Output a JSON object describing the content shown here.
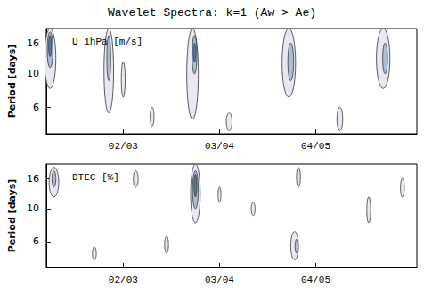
{
  "suptitle": "Wavelet Spectra: k=1 (Aw > Ae)",
  "chart_data": [
    {
      "type": "contour",
      "title": "U_1hPa [m/s]",
      "ylabel": "Period [days]",
      "log": "y",
      "xlim": [
        0.2,
        4.05
      ],
      "xticks": [
        {
          "value": 1,
          "label": "02/03"
        },
        {
          "value": 2,
          "label": "03/04"
        },
        {
          "value": 3,
          "label": "04/05"
        }
      ],
      "ylim": [
        4,
        20
      ],
      "yticks": [
        6,
        10,
        16
      ],
      "levels": [
        1,
        2,
        3
      ],
      "colors": [
        "#ece6f2",
        "#a8bfd8",
        "#4f7fa8"
      ],
      "contours": [
        {
          "x": 0.24,
          "period_min": 8,
          "period_max": 20,
          "half_width": 0.06,
          "level": 1
        },
        {
          "x": 0.24,
          "period_min": 11,
          "period_max": 19,
          "half_width": 0.03,
          "level": 2
        },
        {
          "x": 0.24,
          "period_min": 13,
          "period_max": 18,
          "half_width": 0.015,
          "level": 3
        },
        {
          "x": 0.85,
          "period_min": 5.5,
          "period_max": 20,
          "half_width": 0.05,
          "level": 1
        },
        {
          "x": 0.85,
          "period_min": 9,
          "period_max": 18,
          "half_width": 0.02,
          "level": 2
        },
        {
          "x": 1.0,
          "period_min": 7,
          "period_max": 12,
          "half_width": 0.02,
          "level": 1
        },
        {
          "x": 1.72,
          "period_min": 5,
          "period_max": 20,
          "half_width": 0.06,
          "level": 1
        },
        {
          "x": 1.74,
          "period_min": 10,
          "period_max": 18,
          "half_width": 0.025,
          "level": 2
        },
        {
          "x": 1.74,
          "period_min": 12,
          "period_max": 16,
          "half_width": 0.01,
          "level": 3
        },
        {
          "x": 2.72,
          "period_min": 7,
          "period_max": 20,
          "half_width": 0.07,
          "level": 1
        },
        {
          "x": 2.74,
          "period_min": 9,
          "period_max": 16,
          "half_width": 0.03,
          "level": 2
        },
        {
          "x": 3.7,
          "period_min": 8,
          "period_max": 20,
          "half_width": 0.07,
          "level": 1
        },
        {
          "x": 3.72,
          "period_min": 10,
          "period_max": 16,
          "half_width": 0.025,
          "level": 2
        },
        {
          "x": 3.25,
          "period_min": 4.2,
          "period_max": 6,
          "half_width": 0.03,
          "level": 1
        },
        {
          "x": 2.1,
          "period_min": 4.2,
          "period_max": 5.5,
          "half_width": 0.03,
          "level": 1
        },
        {
          "x": 1.3,
          "period_min": 4.5,
          "period_max": 6,
          "half_width": 0.02,
          "level": 1
        }
      ]
    },
    {
      "type": "contour",
      "title": "DTEC [%]",
      "ylabel": "Period [days]",
      "log": "y",
      "xlim": [
        0.2,
        4.05
      ],
      "xticks": [
        {
          "value": 1,
          "label": "02/03"
        },
        {
          "value": 2,
          "label": "03/04"
        },
        {
          "value": 3,
          "label": "04/05"
        }
      ],
      "ylim": [
        4,
        20
      ],
      "yticks": [
        6,
        10,
        16
      ],
      "levels": [
        1,
        2,
        3
      ],
      "colors": [
        "#ece6f2",
        "#a8bfd8",
        "#4f7fa8"
      ],
      "contours": [
        {
          "x": 0.28,
          "period_min": 12,
          "period_max": 19,
          "half_width": 0.05,
          "level": 1
        },
        {
          "x": 0.28,
          "period_min": 14,
          "period_max": 18,
          "half_width": 0.02,
          "level": 2
        },
        {
          "x": 1.13,
          "period_min": 14,
          "period_max": 18,
          "half_width": 0.025,
          "level": 1
        },
        {
          "x": 1.75,
          "period_min": 8,
          "period_max": 20,
          "half_width": 0.05,
          "level": 1
        },
        {
          "x": 1.75,
          "period_min": 10,
          "period_max": 18,
          "half_width": 0.03,
          "level": 2
        },
        {
          "x": 1.75,
          "period_min": 12,
          "period_max": 17,
          "half_width": 0.015,
          "level": 3
        },
        {
          "x": 2.35,
          "period_min": 9,
          "period_max": 11,
          "half_width": 0.02,
          "level": 1
        },
        {
          "x": 2.78,
          "period_min": 4.5,
          "period_max": 7,
          "half_width": 0.04,
          "level": 1
        },
        {
          "x": 2.8,
          "period_min": 5,
          "period_max": 6.2,
          "half_width": 0.015,
          "level": 2
        },
        {
          "x": 2.82,
          "period_min": 14,
          "period_max": 19,
          "half_width": 0.02,
          "level": 1
        },
        {
          "x": 3.55,
          "period_min": 8,
          "period_max": 12,
          "half_width": 0.02,
          "level": 1
        },
        {
          "x": 1.45,
          "period_min": 5,
          "period_max": 6.5,
          "half_width": 0.02,
          "level": 1
        },
        {
          "x": 0.7,
          "period_min": 4.5,
          "period_max": 5.5,
          "half_width": 0.02,
          "level": 1
        },
        {
          "x": 2.0,
          "period_min": 11,
          "period_max": 14,
          "half_width": 0.015,
          "level": 1
        },
        {
          "x": 3.9,
          "period_min": 12,
          "period_max": 16,
          "half_width": 0.02,
          "level": 1
        }
      ]
    }
  ]
}
